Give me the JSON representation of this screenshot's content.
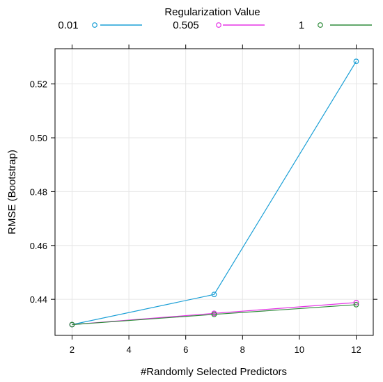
{
  "chart_data": {
    "type": "line",
    "xlabel": "#Randomly Selected Predictors",
    "ylabel": "RMSE (Bootstrap)",
    "legend_title": "Regularization Value",
    "legend_position": "top",
    "grid": true,
    "x": [
      2,
      7,
      12
    ],
    "xlim": [
      1.4,
      12.6
    ],
    "ylim": [
      0.4266,
      0.5331
    ],
    "xticks": [
      2,
      4,
      6,
      8,
      10,
      12
    ],
    "yticks": [
      0.44,
      0.46,
      0.48,
      0.5,
      0.52
    ],
    "xtick_labels": [
      "2",
      "4",
      "6",
      "8",
      "10",
      "12"
    ],
    "ytick_labels": [
      "0.44",
      "0.46",
      "0.48",
      "0.50",
      "0.52"
    ],
    "series": [
      {
        "name": "0.01",
        "color": "#1a9fd6",
        "values": [
          0.4306,
          0.4418,
          0.5284
        ]
      },
      {
        "name": "0.505",
        "color": "#e633e6",
        "values": [
          0.4306,
          0.4348,
          0.4388
        ]
      },
      {
        "name": "1",
        "color": "#2e8b3a",
        "values": [
          0.4306,
          0.4344,
          0.438
        ]
      }
    ]
  }
}
